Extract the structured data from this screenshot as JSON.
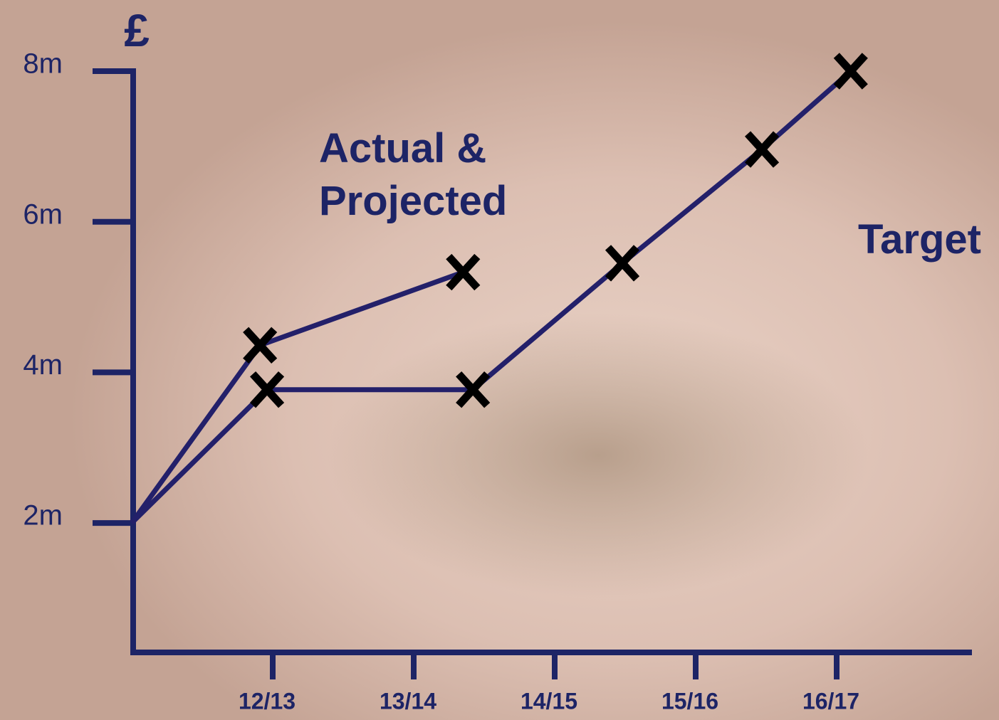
{
  "chart_data": {
    "type": "line",
    "y_label": "£",
    "x": null,
    "xlim": [
      0,
      6
    ],
    "xticks": [
      {
        "value": 1,
        "label": "12/13"
      },
      {
        "value": 2,
        "label": "13/14"
      },
      {
        "value": 3,
        "label": "14/15"
      },
      {
        "value": 4,
        "label": "15/16"
      },
      {
        "value": 5,
        "label": "16/17"
      }
    ],
    "ylim": [
      0.3,
      8
    ],
    "yticks": [
      {
        "value": 2,
        "label": "2m"
      },
      {
        "value": 4,
        "label": "4m"
      },
      {
        "value": 6,
        "label": "6m"
      },
      {
        "value": 8,
        "label": "8m"
      }
    ],
    "grid": false,
    "series": [
      {
        "name": "Actual & Projected",
        "color": "#23206a",
        "x": [
          0,
          0.91,
          2.35
        ],
        "values": [
          2,
          4.36,
          5.33
        ]
      },
      {
        "name": "Target",
        "color": "#23206a",
        "x": [
          0,
          0.96,
          2.42,
          3.48,
          4.47,
          5.1
        ],
        "values": [
          2,
          3.77,
          3.77,
          5.45,
          6.96,
          8
        ]
      }
    ]
  }
}
